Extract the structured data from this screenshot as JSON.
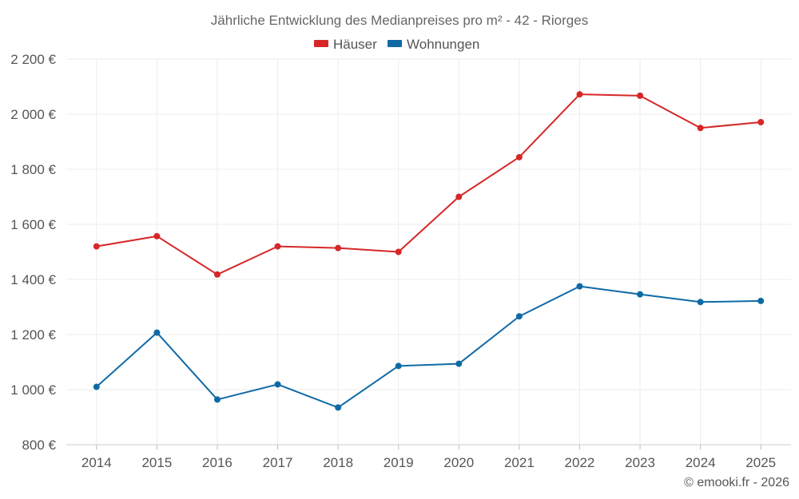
{
  "chart_data": {
    "type": "line",
    "title": "Jährliche Entwicklung des Medianpreises pro m² - 42 - Riorges",
    "categories": [
      "2014",
      "2015",
      "2016",
      "2017",
      "2018",
      "2019",
      "2020",
      "2021",
      "2022",
      "2023",
      "2024",
      "2025"
    ],
    "series": [
      {
        "name": "Häuser",
        "color": "#d62728",
        "values": [
          1520,
          1557,
          1418,
          1520,
          1514,
          1500,
          1700,
          1844,
          2072,
          2067,
          1950,
          1971
        ]
      },
      {
        "name": "Wohnungen",
        "color": "#0f6aa4",
        "values": [
          1010,
          1207,
          964,
          1019,
          935,
          1086,
          1094,
          1266,
          1375,
          1346,
          1318,
          1322
        ]
      }
    ],
    "ylim": [
      800,
      2200
    ],
    "yticks": [
      800,
      1000,
      1200,
      1400,
      1600,
      1800,
      2000,
      2200
    ],
    "ytick_labels": [
      "800 €",
      "1 000 €",
      "1 200 €",
      "1 400 €",
      "1 600 €",
      "1 800 €",
      "2 000 €",
      "2 200 €"
    ],
    "xlabel": "",
    "ylabel": "",
    "grid": true,
    "legend_position": "top-center"
  },
  "credit": "© emooki.fr - 2026"
}
